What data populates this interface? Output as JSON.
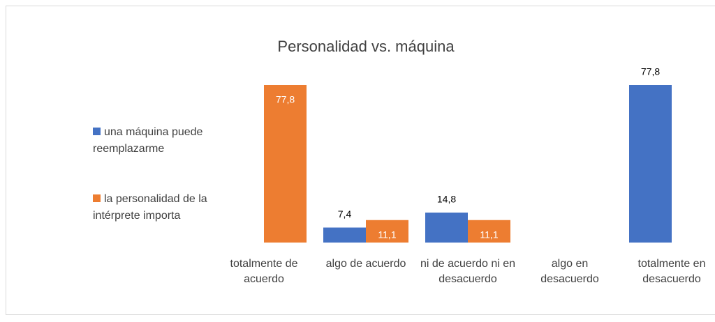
{
  "chart_data": {
    "type": "bar",
    "title": "Personalidad vs. máquina",
    "categories": [
      "totalmente de acuerdo",
      "algo de acuerdo",
      "ni de acuerdo ni en desacuerdo",
      "algo en desacuerdo",
      "totalmente en desacuerdo"
    ],
    "series": [
      {
        "name": "una máquina puede reemplazarme",
        "color": "#4472c4",
        "label_position": "above",
        "values": [
          null,
          7.4,
          14.8,
          null,
          77.8
        ],
        "value_labels": [
          null,
          "7,4",
          "14,8",
          null,
          "77,8"
        ]
      },
      {
        "name": "la personalidad de la intérprete importa",
        "color": "#ed7d31",
        "label_position": "inside",
        "values": [
          77.8,
          11.1,
          11.1,
          null,
          null
        ],
        "value_labels": [
          "77,8",
          "11,1",
          "11,1",
          null,
          null
        ]
      }
    ],
    "legend": "left"
  }
}
